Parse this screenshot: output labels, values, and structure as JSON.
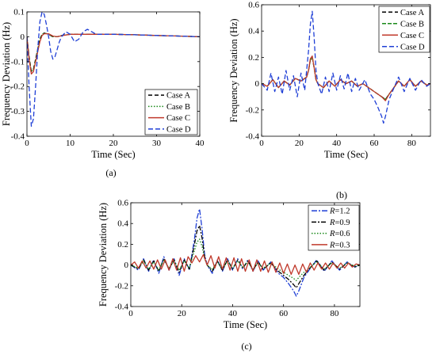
{
  "chart_data": [
    {
      "panel": "(a)",
      "type": "line",
      "xlabel": "Time (Sec)",
      "ylabel": "Frequency Deviation (Hz)",
      "xlim": [
        0,
        40
      ],
      "ylim": [
        -0.4,
        0.1
      ],
      "xticks": [
        0,
        10,
        20,
        30,
        40
      ],
      "yticks": [
        -0.4,
        -0.3,
        -0.2,
        -0.1,
        0,
        0.1
      ],
      "legend_position": "bottom-right",
      "series": [
        {
          "name": "Case A",
          "color": "#000000",
          "dash": "5,3",
          "x": [
            0,
            0.5,
            1,
            1.5,
            2,
            2.5,
            3,
            3.5,
            4,
            5,
            6,
            7,
            8,
            10,
            12,
            15,
            20,
            25,
            30,
            35,
            40
          ],
          "y": [
            0,
            -0.08,
            -0.14,
            -0.13,
            -0.09,
            -0.05,
            -0.01,
            0.01,
            0.015,
            0.01,
            0.0,
            0.0,
            0.005,
            0.01,
            0.01,
            0.01,
            0.01,
            0.008,
            0.005,
            0.003,
            0.0
          ]
        },
        {
          "name": "Case B",
          "color": "#1a8a1a",
          "dash": "1.5,2",
          "x": [
            0,
            0.5,
            1,
            1.5,
            2,
            2.5,
            3,
            3.5,
            4,
            5,
            6,
            7,
            8,
            10,
            12,
            15,
            20,
            25,
            30,
            35,
            40
          ],
          "y": [
            0,
            -0.08,
            -0.14,
            -0.13,
            -0.09,
            -0.05,
            -0.01,
            0.01,
            0.015,
            0.01,
            0.0,
            0.0,
            0.005,
            0.01,
            0.01,
            0.01,
            0.01,
            0.008,
            0.005,
            0.003,
            0.0
          ]
        },
        {
          "name": "Case C",
          "color": "#c0392b",
          "dash": "",
          "x": [
            0,
            0.5,
            1,
            1.5,
            2,
            2.5,
            3,
            3.5,
            4,
            5,
            6,
            7,
            8,
            10,
            12,
            15,
            20,
            25,
            30,
            35,
            40
          ],
          "y": [
            0,
            -0.09,
            -0.15,
            -0.14,
            -0.1,
            -0.06,
            -0.02,
            0.005,
            0.012,
            0.012,
            0.003,
            0.0,
            0.004,
            0.01,
            0.01,
            0.01,
            0.01,
            0.008,
            0.005,
            0.003,
            0.0
          ]
        },
        {
          "name": "Case D",
          "color": "#1f3fd6",
          "dash": "6,3",
          "x": [
            0,
            0.5,
            1,
            1.5,
            2,
            2.5,
            3,
            3.5,
            4,
            4.5,
            5,
            5.5,
            6,
            6.5,
            7,
            7.5,
            8,
            9,
            10,
            11,
            12,
            13,
            14,
            15,
            16,
            18,
            20,
            25,
            30,
            35,
            40
          ],
          "y": [
            0,
            -0.2,
            -0.36,
            -0.33,
            -0.2,
            -0.05,
            0.06,
            0.1,
            0.09,
            0.05,
            0.0,
            -0.06,
            -0.09,
            -0.08,
            -0.05,
            -0.02,
            0.0,
            0.02,
            0.01,
            -0.02,
            -0.01,
            0.02,
            0.03,
            0.02,
            0.01,
            0.01,
            0.01,
            0.008,
            0.005,
            0.003,
            0.0
          ]
        }
      ]
    },
    {
      "panel": "(b)",
      "type": "line",
      "xlabel": "Time (Sec)",
      "ylabel": "Frequency Deviation (Hz)",
      "xlim": [
        0,
        90
      ],
      "ylim": [
        -0.4,
        0.6
      ],
      "xticks": [
        0,
        20,
        40,
        60,
        80
      ],
      "yticks": [
        -0.4,
        -0.2,
        0,
        0.2,
        0.4,
        0.6
      ],
      "legend_position": "top-right",
      "series": [
        {
          "name": "Case A",
          "color": "#000000",
          "dash": "5,3",
          "x": [
            0,
            3,
            6,
            9,
            12,
            15,
            18,
            21,
            24,
            25,
            26,
            27,
            28,
            29,
            30,
            33,
            36,
            39,
            42,
            45,
            48,
            51,
            54,
            57,
            60,
            62,
            64,
            66,
            68,
            70,
            73,
            76,
            79,
            82,
            85,
            88,
            90
          ],
          "y": [
            0,
            -0.02,
            0.03,
            -0.03,
            0.02,
            -0.01,
            0.04,
            0.02,
            0.05,
            0.1,
            0.18,
            0.2,
            0.12,
            0.03,
            0.0,
            -0.03,
            0.02,
            -0.02,
            0.03,
            0.0,
            0.02,
            -0.02,
            0.0,
            -0.03,
            -0.06,
            -0.08,
            -0.1,
            -0.12,
            -0.08,
            -0.04,
            0.02,
            -0.02,
            0.03,
            -0.02,
            0.02,
            -0.01,
            0.0
          ]
        },
        {
          "name": "Case B",
          "color": "#1a8a1a",
          "dash": "5,2",
          "x": [
            0,
            3,
            6,
            9,
            12,
            15,
            18,
            21,
            24,
            25,
            26,
            27,
            28,
            29,
            30,
            33,
            36,
            39,
            42,
            45,
            48,
            51,
            54,
            57,
            60,
            62,
            64,
            66,
            68,
            70,
            73,
            76,
            79,
            82,
            85,
            88,
            90
          ],
          "y": [
            0,
            -0.02,
            0.03,
            -0.03,
            0.02,
            -0.01,
            0.04,
            0.02,
            0.05,
            0.1,
            0.18,
            0.2,
            0.12,
            0.03,
            0.0,
            -0.03,
            0.02,
            -0.02,
            0.03,
            0.0,
            0.02,
            -0.02,
            0.0,
            -0.03,
            -0.06,
            -0.08,
            -0.1,
            -0.12,
            -0.08,
            -0.04,
            0.02,
            -0.02,
            0.03,
            -0.02,
            0.02,
            -0.01,
            0.0
          ]
        },
        {
          "name": "Case C",
          "color": "#c0392b",
          "dash": "",
          "x": [
            0,
            3,
            6,
            9,
            12,
            15,
            18,
            21,
            24,
            25,
            26,
            27,
            28,
            29,
            30,
            33,
            36,
            39,
            42,
            45,
            48,
            51,
            54,
            57,
            60,
            62,
            64,
            66,
            68,
            70,
            73,
            76,
            79,
            82,
            85,
            88,
            90
          ],
          "y": [
            0,
            -0.02,
            0.03,
            -0.03,
            0.02,
            -0.01,
            0.04,
            0.02,
            0.05,
            0.1,
            0.19,
            0.21,
            0.12,
            0.03,
            0.0,
            -0.03,
            0.02,
            -0.02,
            0.03,
            0.0,
            0.02,
            -0.02,
            0.0,
            -0.03,
            -0.06,
            -0.08,
            -0.1,
            -0.13,
            -0.08,
            -0.04,
            0.02,
            -0.02,
            0.03,
            -0.02,
            0.02,
            -0.01,
            0.0
          ]
        },
        {
          "name": "Case D",
          "color": "#1f3fd6",
          "dash": "6,3",
          "x": [
            0,
            3,
            5,
            7,
            9,
            11,
            13,
            15,
            17,
            19,
            21,
            23,
            24,
            25,
            26,
            27,
            28,
            29,
            30,
            32,
            34,
            36,
            38,
            40,
            42,
            44,
            46,
            48,
            50,
            52,
            55,
            58,
            60,
            62,
            64,
            65,
            66,
            68,
            70,
            73,
            76,
            79,
            82,
            85,
            88,
            90
          ],
          "y": [
            0,
            -0.05,
            0.08,
            -0.06,
            0.05,
            -0.08,
            0.1,
            -0.05,
            0.06,
            -0.1,
            0.08,
            -0.05,
            0.1,
            0.25,
            0.45,
            0.55,
            0.35,
            0.1,
            0.0,
            -0.08,
            0.05,
            -0.06,
            0.08,
            -0.05,
            0.06,
            -0.04,
            0.08,
            -0.06,
            0.04,
            -0.05,
            0.03,
            -0.08,
            -0.12,
            -0.18,
            -0.25,
            -0.3,
            -0.25,
            -0.12,
            -0.05,
            0.05,
            -0.06,
            0.04,
            -0.05,
            0.03,
            -0.02,
            0.0
          ]
        }
      ]
    },
    {
      "panel": "(c)",
      "type": "line",
      "xlabel": "Time (Sec)",
      "ylabel": "Frequency Deviation (Hz)",
      "xlim": [
        0,
        90
      ],
      "ylim": [
        -0.4,
        0.6
      ],
      "xticks": [
        0,
        20,
        40,
        60,
        80
      ],
      "yticks": [
        -0.4,
        -0.2,
        0,
        0.2,
        0.4,
        0.6
      ],
      "legend_position": "top-right",
      "series": [
        {
          "name": "R=1.2",
          "legend_var": "R",
          "legend_value": "=1.2",
          "color": "#1f3fd6",
          "dash": "7,2,2,2",
          "x": [
            0,
            3,
            5,
            7,
            9,
            11,
            13,
            15,
            17,
            19,
            21,
            23,
            24,
            25,
            26,
            27,
            28,
            29,
            30,
            32,
            34,
            36,
            38,
            40,
            42,
            44,
            46,
            48,
            50,
            52,
            55,
            58,
            60,
            62,
            64,
            65,
            66,
            68,
            70,
            73,
            76,
            79,
            82,
            85,
            88,
            90
          ],
          "y": [
            0,
            -0.05,
            0.06,
            -0.06,
            0.05,
            -0.08,
            0.08,
            -0.05,
            0.06,
            -0.1,
            0.06,
            -0.05,
            0.1,
            0.25,
            0.45,
            0.54,
            0.35,
            0.1,
            0.0,
            -0.08,
            0.05,
            -0.06,
            0.06,
            -0.05,
            0.06,
            -0.04,
            0.05,
            -0.06,
            0.04,
            -0.05,
            0.03,
            -0.08,
            -0.12,
            -0.18,
            -0.25,
            -0.3,
            -0.25,
            -0.12,
            -0.05,
            0.05,
            -0.06,
            0.04,
            -0.05,
            0.03,
            -0.02,
            0.0
          ]
        },
        {
          "name": "R=0.9",
          "legend_var": "R",
          "legend_value": "=0.9",
          "color": "#000000",
          "dash": "6,2,2,2",
          "x": [
            0,
            3,
            5,
            7,
            9,
            11,
            13,
            15,
            17,
            19,
            21,
            23,
            24,
            25,
            26,
            27,
            28,
            29,
            30,
            32,
            34,
            36,
            38,
            40,
            42,
            44,
            46,
            48,
            50,
            52,
            55,
            58,
            60,
            62,
            64,
            65,
            66,
            68,
            70,
            73,
            76,
            79,
            82,
            85,
            88,
            90
          ],
          "y": [
            0,
            -0.04,
            0.05,
            -0.05,
            0.04,
            -0.06,
            0.06,
            -0.04,
            0.05,
            -0.07,
            0.05,
            -0.04,
            0.08,
            0.2,
            0.33,
            0.38,
            0.26,
            0.08,
            0.0,
            -0.06,
            0.04,
            -0.05,
            0.05,
            -0.04,
            0.05,
            -0.03,
            0.04,
            -0.05,
            0.03,
            -0.04,
            0.02,
            -0.06,
            -0.1,
            -0.14,
            -0.19,
            -0.22,
            -0.18,
            -0.1,
            -0.04,
            0.04,
            -0.05,
            0.03,
            -0.04,
            0.02,
            -0.02,
            0.0
          ]
        },
        {
          "name": "R=0.6",
          "legend_var": "R",
          "legend_value": "=0.6",
          "color": "#1a8a1a",
          "dash": "1.5,2",
          "x": [
            0,
            3,
            5,
            7,
            9,
            11,
            13,
            15,
            17,
            19,
            21,
            23,
            24,
            25,
            26,
            27,
            28,
            29,
            30,
            32,
            34,
            36,
            38,
            40,
            42,
            44,
            46,
            48,
            50,
            52,
            55,
            58,
            60,
            62,
            64,
            65,
            66,
            68,
            70,
            73,
            76,
            79,
            82,
            85,
            88,
            90
          ],
          "y": [
            0,
            -0.03,
            0.04,
            -0.04,
            0.03,
            -0.05,
            0.05,
            -0.03,
            0.04,
            -0.05,
            0.04,
            -0.03,
            0.06,
            0.14,
            0.22,
            0.25,
            0.18,
            0.06,
            0.0,
            -0.04,
            0.03,
            -0.04,
            0.04,
            -0.03,
            0.04,
            -0.02,
            0.03,
            -0.04,
            0.02,
            -0.03,
            0.02,
            -0.04,
            -0.07,
            -0.1,
            -0.13,
            -0.15,
            -0.12,
            -0.07,
            -0.03,
            0.03,
            -0.04,
            0.02,
            -0.03,
            0.02,
            -0.01,
            0.0
          ]
        },
        {
          "name": "R=0.3",
          "legend_var": "R",
          "legend_value": "=0.3",
          "color": "#c0392b",
          "dash": "",
          "x": [
            0,
            1.5,
            3,
            4.5,
            6,
            7.5,
            9,
            10.5,
            12,
            13.5,
            15,
            16.5,
            18,
            19.5,
            21,
            22.5,
            24,
            25.5,
            27,
            28.5,
            30,
            31.5,
            33,
            34.5,
            36,
            37.5,
            39,
            40.5,
            42,
            43.5,
            45,
            46.5,
            48,
            49.5,
            51,
            52.5,
            54,
            55.5,
            57,
            58.5,
            60,
            61.5,
            63,
            64.5,
            66,
            67.5,
            69,
            70.5,
            72,
            73.5,
            75,
            76.5,
            78,
            79.5,
            81,
            82.5,
            84,
            85.5,
            87,
            88.5,
            90
          ],
          "y": [
            0,
            0.03,
            -0.03,
            0.04,
            -0.03,
            0.04,
            -0.04,
            0.05,
            -0.04,
            0.05,
            -0.05,
            0.06,
            -0.05,
            0.07,
            -0.06,
            0.08,
            0.02,
            0.09,
            0.03,
            0.1,
            0.0,
            0.09,
            -0.03,
            0.08,
            -0.04,
            0.07,
            -0.05,
            0.07,
            -0.06,
            0.06,
            -0.06,
            0.05,
            -0.06,
            0.05,
            -0.06,
            0.04,
            -0.07,
            0.03,
            -0.07,
            0.02,
            -0.08,
            0.01,
            -0.09,
            0.0,
            -0.09,
            0.01,
            -0.07,
            0.02,
            -0.05,
            0.02,
            -0.04,
            0.02,
            -0.04,
            0.02,
            -0.03,
            0.02,
            -0.03,
            0.02,
            -0.02,
            0.01,
            0.0
          ]
        }
      ]
    }
  ]
}
